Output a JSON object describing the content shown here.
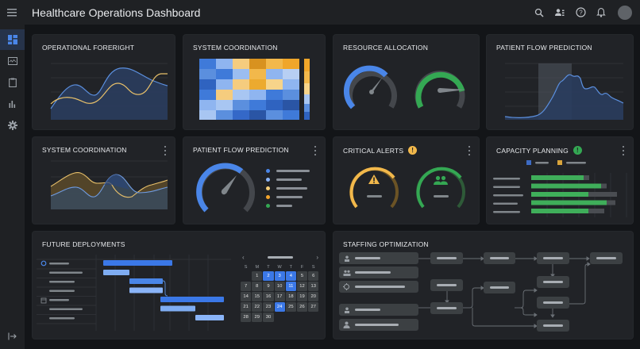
{
  "header": {
    "title": "Healthcare Operations Dashboard",
    "actions": [
      {
        "icon": "search-icon",
        "label": "Search"
      },
      {
        "icon": "people-icon",
        "label": "Team"
      },
      {
        "icon": "help-icon",
        "label": "Help"
      },
      {
        "icon": "bell-icon",
        "label": "Notifications"
      },
      {
        "icon": "avatar",
        "label": "Account"
      }
    ]
  },
  "sidebar": {
    "items": [
      {
        "icon": "dashboard-icon",
        "active": true
      },
      {
        "icon": "monitor-icon",
        "active": false
      },
      {
        "icon": "clipboard-icon",
        "active": false
      },
      {
        "icon": "bar-chart-icon",
        "active": false
      },
      {
        "icon": "settings-icon",
        "active": false
      }
    ],
    "bottom_icon": "logout-icon"
  },
  "colors": {
    "blue": "#4a86e8",
    "light_blue": "#8ab4f8",
    "yellow": "#f2b84b",
    "orange": "#f4a42b",
    "green": "#34a853",
    "card_bg": "#212327",
    "page_bg": "#131518"
  },
  "cards": {
    "operational_foresight": {
      "title": "OPERATIONAL FORERIGHT"
    },
    "system_coordination_heatmap": {
      "title": "SYSTEM COORDINATION"
    },
    "resource_allocation": {
      "title": "RESOURCE ALLOCATION",
      "gauges": [
        {
          "color": "#4a86e8",
          "fill_pct": 62
        },
        {
          "color": "#34a853",
          "fill_pct": 78
        }
      ]
    },
    "patient_flow_chart": {
      "title": "PATIENT FLOW PREDICTION"
    },
    "system_coordination_area": {
      "title": "SYSTEM COORDINATION"
    },
    "patient_flow_gauge": {
      "title": "PATIENT FLOW PREDICTION",
      "gauge_fill_pct": 58,
      "legend_colors": [
        "#4a86e8",
        "#8ab4f8",
        "#f6cf7a",
        "#f4a42b",
        "#34a853"
      ]
    },
    "critical_alerts": {
      "title": "CRITICAL ALERTS",
      "badge": "!",
      "gauges": [
        {
          "icon": "warning-icon",
          "color": "#f2b84b"
        },
        {
          "icon": "people-icon",
          "color": "#34a853"
        }
      ]
    },
    "capacity_planning": {
      "title": "CAPACITY PLANNING",
      "badge": "!",
      "legend_colors": [
        "#3d6bc4",
        "#d9a43b"
      ],
      "bars": [
        {
          "used": 66,
          "total": 73
        },
        {
          "used": 88,
          "total": 95
        },
        {
          "used": 72,
          "total": 108
        },
        {
          "used": 95,
          "total": 99
        },
        {
          "used": 72,
          "total": 92
        }
      ]
    },
    "future_deployments": {
      "title": "FUTURE DEPLOYMENTS"
    },
    "staffing_optimization": {
      "title": "STAFFING OPTIMIZATION"
    }
  },
  "calendar": {
    "prev": "‹",
    "next": "›",
    "weekdays": [
      "S",
      "M",
      "T",
      "W",
      "T",
      "F",
      "S"
    ],
    "days": [
      "",
      "1",
      "2",
      "3",
      "4",
      "5",
      "6",
      "7",
      "8",
      "9",
      "10",
      "11",
      "12",
      "13",
      "14",
      "15",
      "16",
      "17",
      "18",
      "19",
      "20",
      "21",
      "22",
      "23",
      "24",
      "25",
      "26",
      "27",
      "28",
      "29",
      "30"
    ],
    "selected": [
      "2",
      "3",
      "4",
      "11",
      "24"
    ]
  }
}
